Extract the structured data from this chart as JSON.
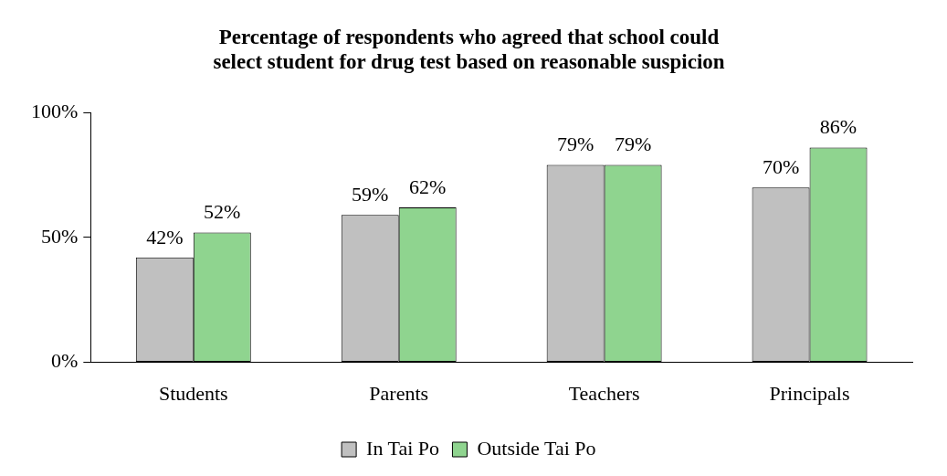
{
  "chart_data": {
    "type": "bar",
    "title": "Percentage of respondents who agreed that school could\nselect student for drug test based on reasonable suspicion",
    "categories": [
      "Students",
      "Parents",
      "Teachers",
      "Principals"
    ],
    "series": [
      {
        "name": "In Tai Po",
        "color": "#c0c0c0",
        "values": [
          42,
          59,
          79,
          70
        ],
        "value_labels": [
          "42%",
          "59%",
          "79%",
          "70%"
        ]
      },
      {
        "name": "Outside Tai Po",
        "color": "#8fd48f",
        "values": [
          52,
          62,
          79,
          86
        ],
        "value_labels": [
          "52%",
          "62%",
          "79%",
          "86%"
        ]
      }
    ],
    "ylim": [
      0,
      100
    ],
    "yticks": [
      {
        "value": 0,
        "label": "0%"
      },
      {
        "value": 50,
        "label": "50%"
      },
      {
        "value": 100,
        "label": "100%"
      }
    ],
    "grid": false,
    "legend": "bottom"
  }
}
